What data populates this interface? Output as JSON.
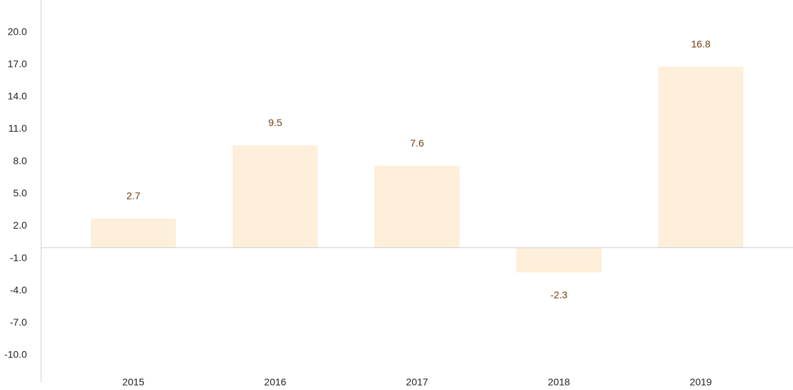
{
  "chart_data": {
    "type": "bar",
    "title": "",
    "xlabel": "",
    "ylabel": "",
    "categories": [
      "2015",
      "2016",
      "2017",
      "2018",
      "2019"
    ],
    "values": [
      2.7,
      9.5,
      7.6,
      -2.3,
      16.8
    ],
    "value_labels": [
      "2.7",
      "9.5",
      "7.6",
      "-2.3",
      "16.8"
    ],
    "y_ticks": [
      20,
      17,
      14,
      11,
      8,
      5,
      2,
      -1,
      -4,
      -7,
      -10
    ],
    "y_tick_labels": [
      "20.0",
      "17.0",
      "14.0",
      "11.0",
      "8.0",
      "5.0",
      "2.0",
      "-1.0",
      "-4.0",
      "-7.0",
      "-10.0"
    ],
    "ylim": [
      -12.5,
      23
    ],
    "grid": false,
    "legend": "none",
    "bar_color": "#fdefd9",
    "label_color": "#7a3b0a",
    "axis_color": "#cccccc"
  }
}
